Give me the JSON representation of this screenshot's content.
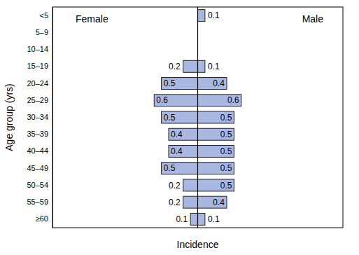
{
  "chart_data": {
    "type": "bar",
    "orientation": "horizontal",
    "xlabel": "Incidence",
    "ylabel": "Age group (yrs)",
    "categories": [
      "<5",
      "5–9",
      "10–14",
      "15–19",
      "20–24",
      "25–29",
      "30–34",
      "35–39",
      "40–44",
      "45–49",
      "50–54",
      "55–59",
      "≥60"
    ],
    "series": [
      {
        "name": "Female",
        "color": "#a8b8e2",
        "values": [
          null,
          null,
          null,
          0.2,
          0.5,
          0.6,
          0.5,
          0.4,
          0.4,
          0.5,
          0.2,
          0.2,
          0.1
        ]
      },
      {
        "name": "Male",
        "color": "#a8b8e2",
        "values": [
          0.1,
          null,
          null,
          0.1,
          0.4,
          0.6,
          0.5,
          0.5,
          0.5,
          0.5,
          0.5,
          0.4,
          0.1
        ]
      }
    ],
    "xlim": [
      0,
      2
    ],
    "data_labels": true,
    "tick_labels": "y"
  }
}
